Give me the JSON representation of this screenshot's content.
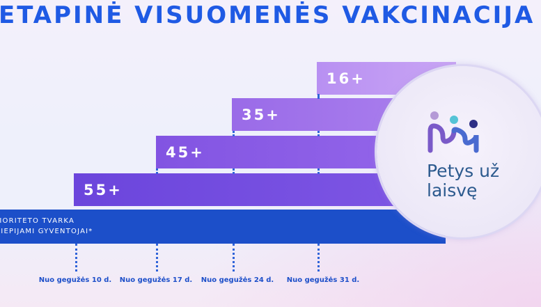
{
  "title": "ETAPINĖ VISUOMENĖS VAKCINACIJA",
  "age_groups": [
    {
      "label": "16+"
    },
    {
      "label": "35+"
    },
    {
      "label": "45+"
    },
    {
      "label": "55+"
    }
  ],
  "priority": {
    "line1": "PRIORITETO TVARKA",
    "line2": "SKIEPIJAMI GYVENTOJAI*"
  },
  "dates": [
    "Nuo gegužės 10 d.",
    "Nuo gegužės 17 d.",
    "Nuo gegužės 24 d.",
    "Nuo gegužės 31 d."
  ],
  "logo": {
    "line1": "Petys už",
    "line2": "laisvę",
    "icon": "people-wave-logo-icon"
  },
  "colors": {
    "title": "#1f5ae4",
    "priority_bar": "#1c4fc9",
    "bar_16": "#c9a5f4",
    "bar_35": "#ab80ee",
    "bar_45": "#9466ea",
    "bar_55": "#7e56e4"
  }
}
